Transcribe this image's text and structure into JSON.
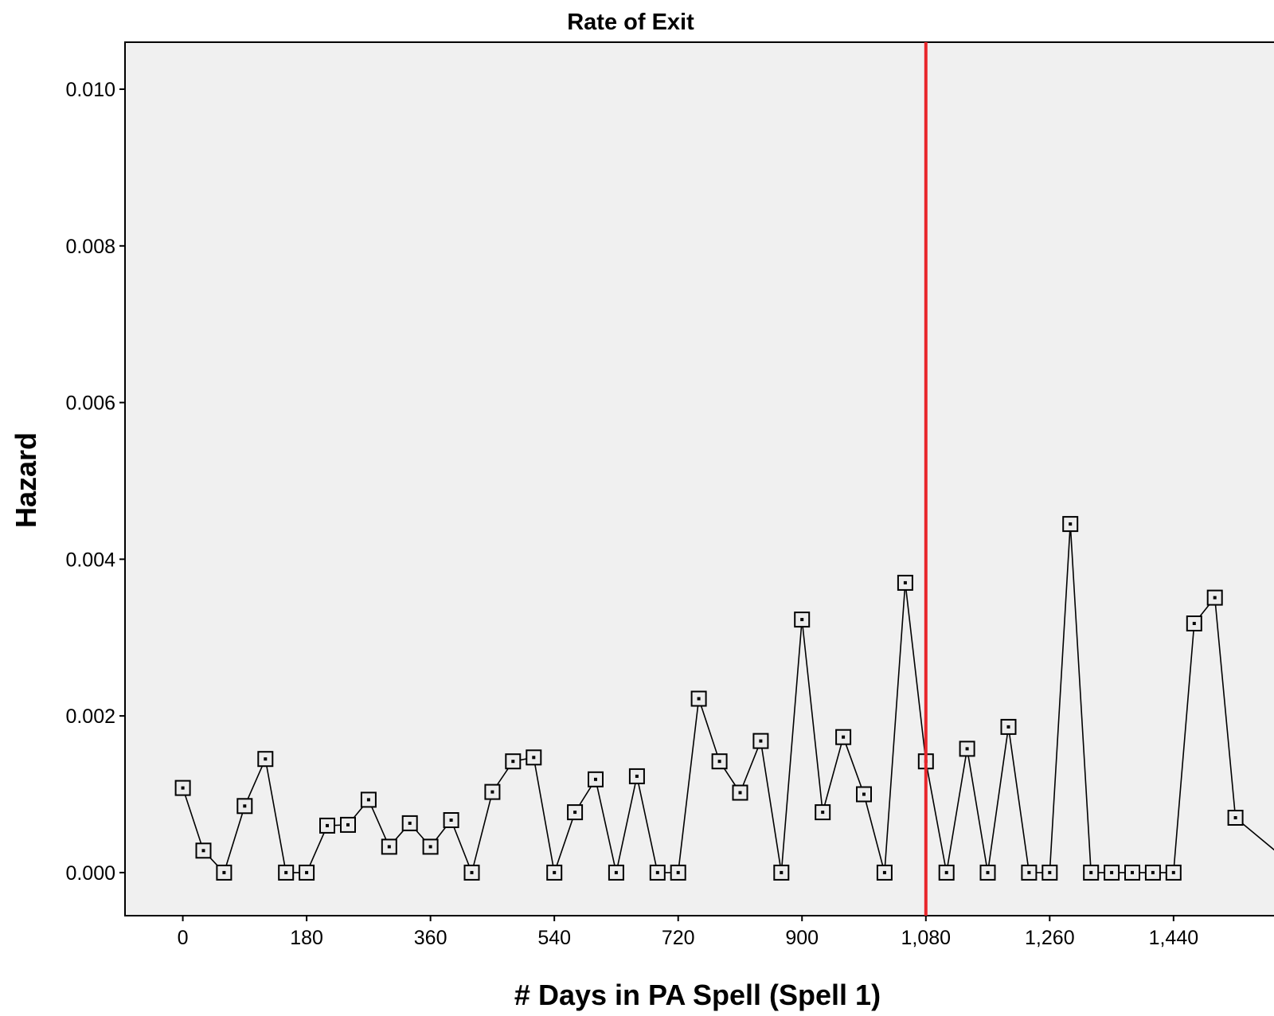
{
  "chart_data": {
    "type": "line",
    "title": "Rate of Exit",
    "xlabel": "# Days in PA Spell (Spell 1)",
    "ylabel": "Hazard",
    "xlim": [
      -84,
      1586
    ],
    "ylim": [
      -0.00055,
      0.0106
    ],
    "xticks": [
      0,
      180,
      360,
      540,
      720,
      900,
      1080,
      1260,
      1440
    ],
    "xtick_labels": [
      "0",
      "180",
      "360",
      "540",
      "720",
      "900",
      "1,080",
      "1,260",
      "1,440"
    ],
    "yticks": [
      0.0,
      0.002,
      0.004,
      0.006,
      0.008,
      0.01
    ],
    "ytick_labels": [
      "0.000",
      "0.002",
      "0.004",
      "0.006",
      "0.008",
      "0.010"
    ],
    "grid": false,
    "reference_line": {
      "axis": "x",
      "value": 1080,
      "color": "#e8262b"
    },
    "series": [
      {
        "marker": "square",
        "color": "#000000",
        "points": [
          [
            0,
            0.00108
          ],
          [
            30,
            0.00028
          ],
          [
            60,
            0.0
          ],
          [
            90,
            0.00085
          ],
          [
            120,
            0.00145
          ],
          [
            150,
            0.0
          ],
          [
            180,
            0.0
          ],
          [
            210,
            0.0006
          ],
          [
            240,
            0.00061
          ],
          [
            270,
            0.00093
          ],
          [
            300,
            0.00033
          ],
          [
            330,
            0.00063
          ],
          [
            360,
            0.00033
          ],
          [
            390,
            0.00067
          ],
          [
            420,
            0.0
          ],
          [
            450,
            0.00103
          ],
          [
            480,
            0.00142
          ],
          [
            510,
            0.00147
          ],
          [
            540,
            0.0
          ],
          [
            570,
            0.00077
          ],
          [
            600,
            0.00119
          ],
          [
            630,
            0.0
          ],
          [
            660,
            0.00123
          ],
          [
            690,
            0.0
          ],
          [
            720,
            0.0
          ],
          [
            750,
            0.00222
          ],
          [
            780,
            0.00142
          ],
          [
            810,
            0.00102
          ],
          [
            840,
            0.00168
          ],
          [
            870,
            0.0
          ],
          [
            900,
            0.00323
          ],
          [
            930,
            0.00077
          ],
          [
            960,
            0.00173
          ],
          [
            990,
            0.001
          ],
          [
            1020,
            0.0
          ],
          [
            1050,
            0.0037
          ],
          [
            1080,
            0.00142
          ],
          [
            1110,
            0.0
          ],
          [
            1140,
            0.00158
          ],
          [
            1170,
            0.0
          ],
          [
            1200,
            0.00186
          ],
          [
            1230,
            0.0
          ],
          [
            1260,
            0.0
          ],
          [
            1290,
            0.00445
          ],
          [
            1320,
            0.0
          ],
          [
            1350,
            0.0
          ],
          [
            1380,
            0.0
          ],
          [
            1410,
            0.0
          ],
          [
            1440,
            0.0
          ],
          [
            1470,
            0.00318
          ],
          [
            1500,
            0.00351
          ],
          [
            1530,
            0.0007
          ]
        ]
      }
    ]
  }
}
